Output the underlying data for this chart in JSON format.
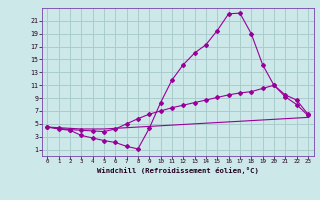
{
  "line1_x": [
    0,
    1,
    2,
    3,
    4,
    5,
    6,
    7,
    8,
    9,
    10,
    11,
    12,
    13,
    14,
    15,
    16,
    17,
    18,
    19,
    20,
    21,
    22,
    23
  ],
  "line1_y": [
    4.5,
    4.2,
    4.0,
    3.2,
    2.8,
    2.4,
    2.1,
    1.5,
    1.1,
    4.3,
    8.3,
    11.8,
    14.2,
    16.0,
    17.3,
    19.5,
    22.1,
    22.2,
    19.0,
    14.2,
    11.0,
    9.2,
    8.0,
    6.3
  ],
  "line2_x": [
    0,
    1,
    2,
    3,
    4,
    5,
    6,
    7,
    8,
    9,
    10,
    11,
    12,
    13,
    14,
    15,
    16,
    17,
    18,
    19,
    20,
    21,
    22,
    23
  ],
  "line2_y": [
    4.5,
    4.3,
    4.1,
    4.0,
    3.9,
    3.8,
    4.2,
    5.0,
    5.8,
    6.5,
    7.0,
    7.5,
    7.9,
    8.3,
    8.7,
    9.1,
    9.5,
    9.8,
    10.0,
    10.5,
    11.0,
    9.5,
    8.7,
    6.5
  ],
  "line3_x": [
    0,
    1,
    2,
    3,
    4,
    5,
    6,
    7,
    8,
    9,
    10,
    11,
    12,
    13,
    14,
    15,
    16,
    17,
    18,
    19,
    20,
    21,
    22,
    23
  ],
  "line3_y": [
    4.5,
    4.4,
    4.3,
    4.2,
    4.2,
    4.2,
    4.3,
    4.4,
    4.5,
    4.6,
    4.7,
    4.8,
    4.9,
    5.0,
    5.1,
    5.2,
    5.3,
    5.4,
    5.5,
    5.6,
    5.7,
    5.8,
    5.9,
    6.0
  ],
  "line_color": "#990099",
  "bg_color": "#cce8e8",
  "grid_color": "#aacccc",
  "xlabel": "Windchill (Refroidissement éolien,°C)",
  "yticks": [
    1,
    3,
    5,
    7,
    9,
    11,
    13,
    15,
    17,
    19,
    21
  ],
  "xticks": [
    0,
    1,
    2,
    3,
    4,
    5,
    6,
    7,
    8,
    9,
    10,
    11,
    12,
    13,
    14,
    15,
    16,
    17,
    18,
    19,
    20,
    21,
    22,
    23
  ],
  "xlim": [
    -0.5,
    23.5
  ],
  "ylim": [
    0,
    23
  ]
}
